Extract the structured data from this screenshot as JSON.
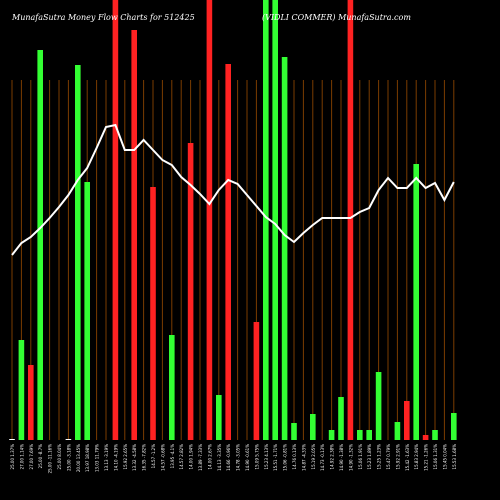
{
  "header": {
    "left_title": "MunafaSutra  Money Flow  Charts for 512425",
    "right_title": "(VIDLI COMMER) MunafaSutra.com"
  },
  "chart_data": {
    "type": "bar",
    "title": "MunafaSutra  Money Flow  Charts for 512425",
    "subtitle": "(VIDLI COMMER) MunafaSutra.com",
    "categories": [
      "25.00 1.37%",
      "27.00 1.14%",
      "27.00 7.69%",
      "25.00 -8.7%",
      "25.00 -11.16%",
      "25.00 8.04%",
      "25.00 -3.18%",
      "20.00 13.45%",
      "13.97 18.98%",
      "13.03 11.79%",
      "13.13 -3.19%",
      "14.10 -4.19%",
      "15.92 2.65%",
      "13.32 -4.58%",
      "16.35 -7.82%",
      "14.57 -1.2%",
      "14.57 -0.68%",
      "13.95 -4.1%",
      "14.57 2.82%",
      "14.00 1.94%",
      "13.89 -7.33%",
      "14.00 2.67%",
      "14.13 -3.35%",
      "14.66 -0.96%",
      "14.78 -3.05%",
      "14.90 -0.61%",
      "15.09 5.75%",
      "15.23 4.13%",
      "15.51 -1.71%",
      "15.06 -0.81%",
      "14.76 0.13%",
      "14.87 -4.33%",
      "15.19 2.05%",
      "14.73 -0.13%",
      "14.92 2.38%",
      "14.90 -1.38%",
      "14.90 -1.32%",
      "15.06 1.91%",
      "15.23 1.89%",
      "15.25 1.23%",
      "15.47 0.79%",
      "15.92 2.91%",
      "15.42 -1.63%",
      "15.83 2.94%",
      "15.21 -1.26%",
      "15.06 1.31%",
      "15.45 0.04%",
      "15.53 1.68%"
    ],
    "series": [
      {
        "colors": [
          "#ffffff",
          "#33ff33",
          "#ff2222",
          "#33ff33",
          "#ff2222",
          "#33ff33",
          "#ffffff",
          "#33ff33",
          "#33ff33",
          "#33ff33",
          "#33ff33",
          "#ff2222",
          "#33ff33",
          "#ff2222",
          "#33ff33",
          "#ff2222",
          "#33ff33",
          "#33ff33",
          "#33ff33",
          "#ff2222",
          "#ff2222",
          "#ff2222",
          "#33ff33",
          "#ff2222",
          "#33ff33",
          "#33ff33",
          "#ff2222",
          "#33ff33",
          "#33ff33",
          "#33ff33",
          "#33ff33",
          "#ff2222",
          "#33ff33",
          "#ff2222",
          "#33ff33",
          "#33ff33",
          "#ff2222",
          "#33ff33",
          "#33ff33",
          "#33ff33",
          "#33ff33",
          "#33ff33",
          "#ff2222",
          "#33ff33",
          "#ff2222",
          "#33ff33",
          "#33ff33",
          "#33ff33"
        ],
        "values": [
          1,
          100,
          75,
          390,
          0,
          0,
          1,
          375,
          258,
          0,
          0,
          440,
          0,
          410,
          0,
          253,
          0,
          105,
          0,
          297,
          0,
          440,
          45,
          376,
          0,
          0,
          118,
          440,
          440,
          383,
          17,
          0,
          26,
          0,
          10,
          43,
          440,
          10,
          10,
          68,
          0,
          18,
          39,
          276,
          5,
          10,
          0,
          27
        ]
      }
    ],
    "line_series": {
      "values": [
        185,
        197,
        203,
        212,
        222,
        233,
        245,
        260,
        272,
        292,
        313,
        315,
        290,
        290,
        300,
        290,
        280,
        275,
        263,
        255,
        246,
        236,
        250,
        260,
        256,
        245,
        234,
        223,
        216,
        205,
        198,
        207,
        215,
        222,
        222,
        222,
        222,
        228,
        232,
        250,
        262,
        252,
        252,
        262,
        252,
        257,
        240,
        258
      ]
    },
    "ylim": [
      0,
      440
    ],
    "grid": true
  }
}
